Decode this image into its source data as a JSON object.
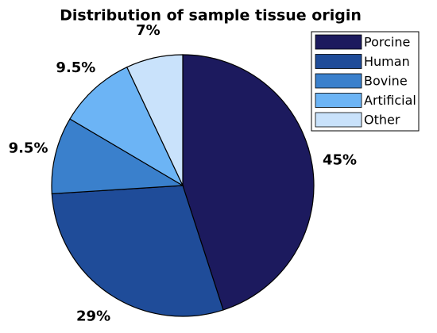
{
  "chart_data": {
    "type": "pie",
    "title": "Distribution of sample tissue origin",
    "categories": [
      "Porcine",
      "Human",
      "Bovine",
      "Artificial",
      "Other"
    ],
    "values": [
      45,
      29,
      9.5,
      9.5,
      7
    ],
    "value_labels": [
      "45%",
      "29%",
      "9.5%",
      "9.5%",
      "7%"
    ],
    "colors": [
      "#1c1a5e",
      "#1f4c99",
      "#3a80cc",
      "#6cb4f5",
      "#c9e2fb"
    ],
    "legend": "upper right"
  }
}
